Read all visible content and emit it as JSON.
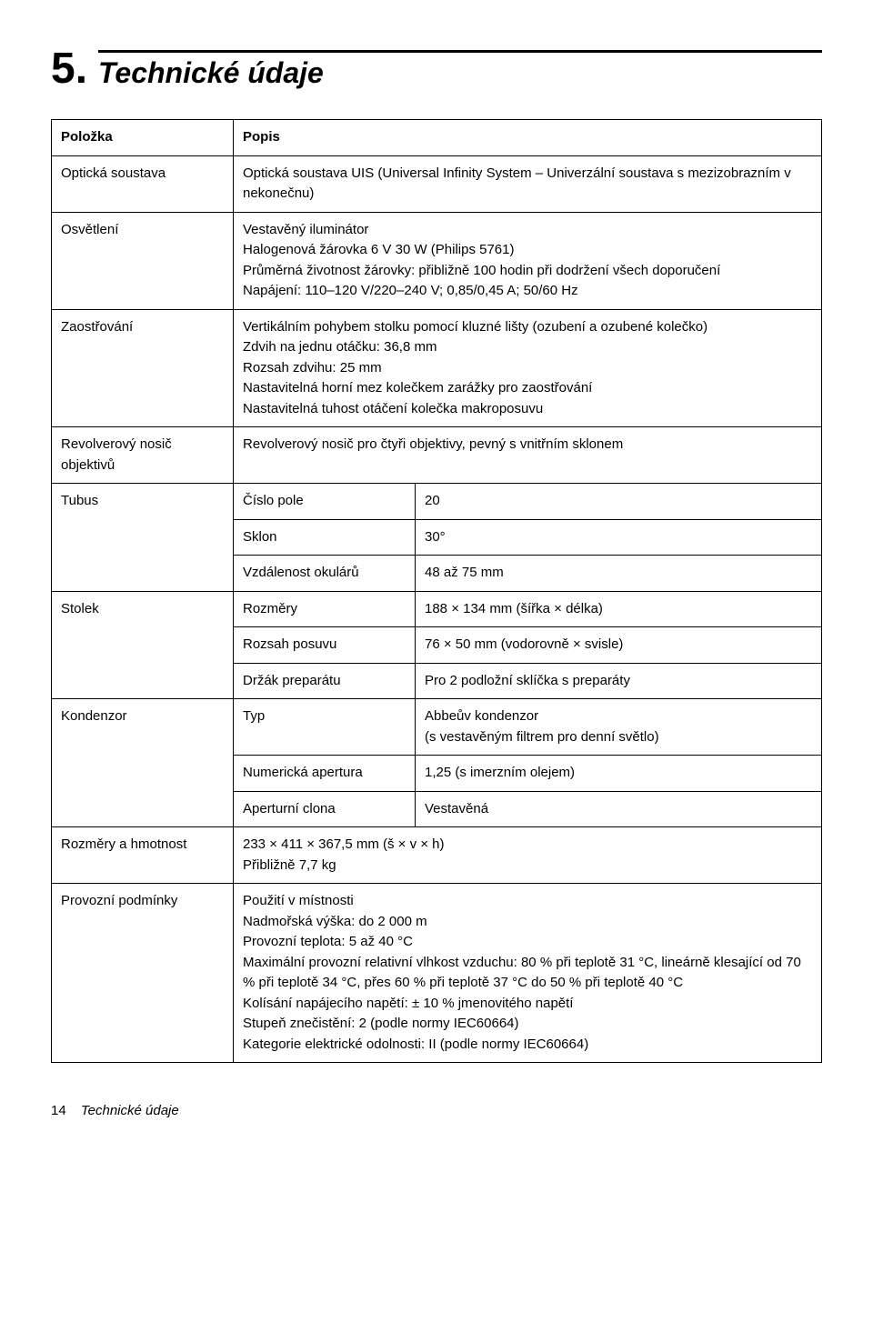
{
  "section": {
    "number": "5.",
    "title": "Technické údaje"
  },
  "headers": {
    "item": "Položka",
    "desc": "Popis"
  },
  "rows": {
    "optical": {
      "label": "Optická soustava",
      "value": "Optická soustava UIS (Universal Infinity System – Univerzální soustava s mezizobrazním v nekonečnu)"
    },
    "illum": {
      "label": "Osvětlení",
      "value": "Vestavěný iluminátor\nHalogenová žárovka 6 V 30 W (Philips 5761)\nPrůměrná životnost žárovky: přibližně 100 hodin při dodržení všech doporučení\nNapájení: 110–120 V/220–240 V; 0,85/0,45 A; 50/60 Hz"
    },
    "focus": {
      "label": "Zaostřování",
      "value": "Vertikálním pohybem stolku pomocí kluzné lišty (ozubení a ozubené kolečko)\nZdvih na jednu otáčku: 36,8 mm\nRozsah zdvihu: 25 mm\nNastavitelná horní mez kolečkem zarážky pro zaostřování\nNastavitelná tuhost otáčení kolečka makroposuvu"
    },
    "nosepiece": {
      "label": "Revolverový nosič objektivů",
      "value": "Revolverový nosič pro čtyři objektivy, pevný s vnitřním sklonem"
    },
    "tubus": {
      "label": "Tubus",
      "field": {
        "label": "Číslo pole",
        "value": "20"
      },
      "tilt": {
        "label": "Sklon",
        "value": "30°"
      },
      "dist": {
        "label": "Vzdálenost okulárů",
        "value": "48 až 75 mm"
      }
    },
    "stage": {
      "label": "Stolek",
      "dims": {
        "label": "Rozměry",
        "value": "188 × 134 mm (šířka × délka)"
      },
      "range": {
        "label": "Rozsah posuvu",
        "value": "76 × 50 mm (vodorovně × svisle)"
      },
      "holder": {
        "label": "Držák preparátu",
        "value": "Pro 2 podložní sklíčka s preparáty"
      }
    },
    "cond": {
      "label": "Kondenzor",
      "type": {
        "label": "Typ",
        "value": "Abbeův kondenzor\n(s vestavěným filtrem pro denní světlo)"
      },
      "na": {
        "label": "Numerická apertura",
        "value": "1,25 (s imerzním olejem)"
      },
      "iris": {
        "label": "Aperturní clona",
        "value": "Vestavěná"
      }
    },
    "dims": {
      "label": "Rozměry a hmotnost",
      "value": "233 × 411 × 367,5 mm (š × v × h)\nPřibližně 7,7 kg"
    },
    "oper": {
      "label": "Provozní podmínky",
      "value": "Použití v místnosti\nNadmořská výška: do 2 000 m\nProvozní teplota: 5 až 40 °C\nMaximální provozní relativní vlhkost vzduchu: 80 % při teplotě 31 °C, lineárně klesající od 70 % při teplotě 34 °C, přes 60 % při teplotě 37 °C do 50 % při teplotě 40 °C\nKolísání napájecího napětí: ± 10 % jmenovitého napětí\nStupeň znečistění: 2 (podle normy IEC60664)\nKategorie elektrické odolnosti: II (podle normy IEC60664)"
    }
  },
  "footer": {
    "page": "14",
    "title": "Technické údaje"
  }
}
